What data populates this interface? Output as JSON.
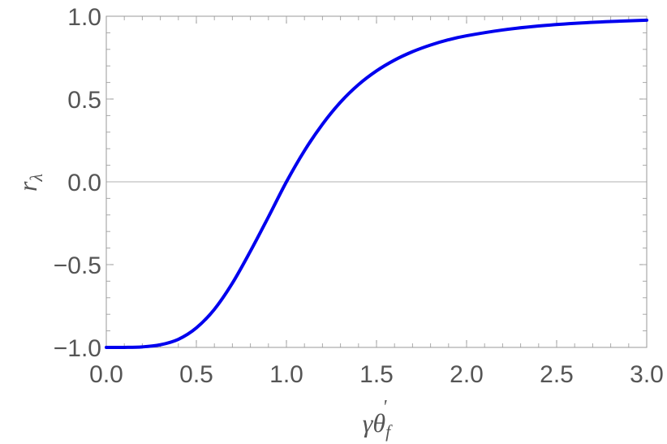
{
  "chart_data": {
    "type": "line",
    "xlabel": "γθ",
    "xlabel_sub": "f",
    "xlabel_sup": "'",
    "ylabel": "r",
    "ylabel_sub": "λ",
    "xlim": [
      0.0,
      3.0
    ],
    "ylim": [
      -1.0,
      1.0
    ],
    "x_ticks": [
      "0.0",
      "0.5",
      "1.0",
      "1.5",
      "2.0",
      "2.5",
      "3.0"
    ],
    "y_ticks": [
      "−1.0",
      "−0.5",
      "0.0",
      "0.5",
      "1.0"
    ],
    "reference_line_y": 0.0,
    "grid": false,
    "series": [
      {
        "color": "#0000ee",
        "x": [
          0.0,
          0.1,
          0.2,
          0.3,
          0.4,
          0.5,
          0.6,
          0.7,
          0.8,
          0.9,
          1.0,
          1.1,
          1.2,
          1.3,
          1.4,
          1.5,
          1.6,
          1.7,
          1.8,
          1.9,
          2.0,
          2.2,
          2.4,
          2.6,
          2.8,
          3.0
        ],
        "y": [
          -1.0,
          -0.9998,
          -0.9968,
          -0.984,
          -0.951,
          -0.882,
          -0.77,
          -0.612,
          -0.419,
          -0.212,
          0.0,
          0.188,
          0.348,
          0.481,
          0.587,
          0.67,
          0.735,
          0.786,
          0.826,
          0.858,
          0.882,
          0.917,
          0.941,
          0.957,
          0.968,
          0.976
        ]
      }
    ]
  }
}
